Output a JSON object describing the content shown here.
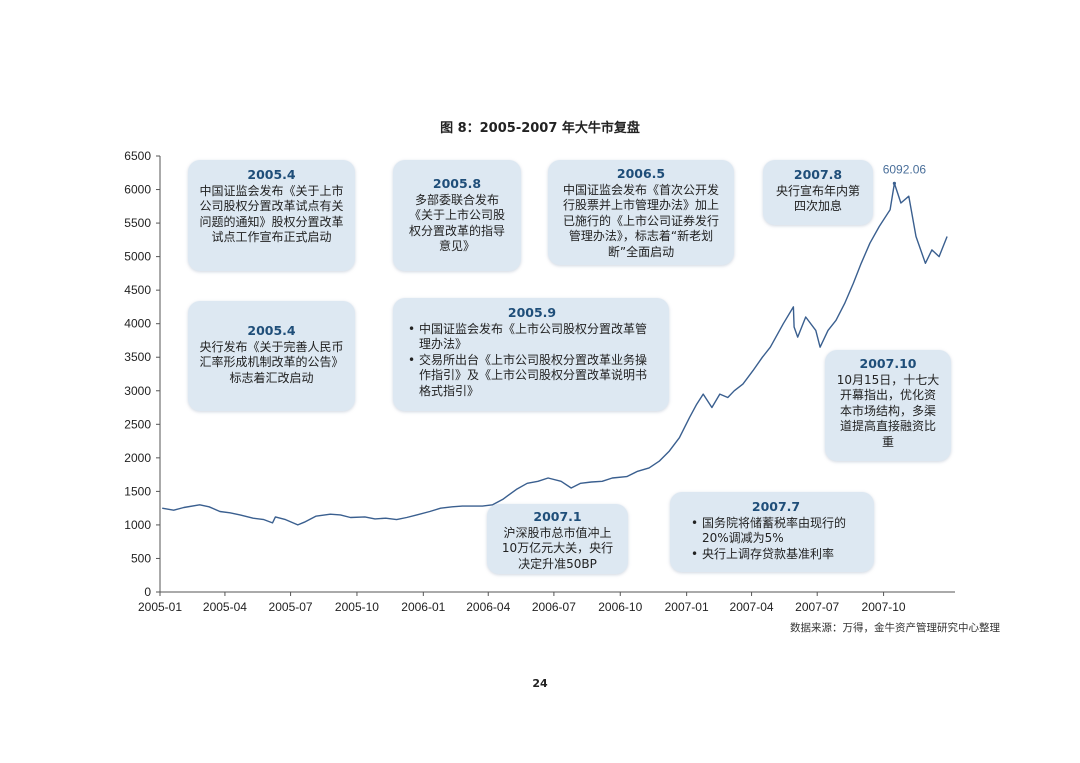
{
  "page": {
    "title": "图 8：2005-2007 年大牛市复盘",
    "source": "数据来源：万得，金牛资产管理研究中心整理",
    "page_number": "24"
  },
  "chart_data": {
    "type": "line",
    "title": "图 8：2005-2007 年大牛市复盘",
    "xlabel": "",
    "ylabel": "",
    "ylim": [
      0,
      6500
    ],
    "yticks": [
      "0",
      "500",
      "1000",
      "1500",
      "2000",
      "2500",
      "3000",
      "3500",
      "4000",
      "4500",
      "5000",
      "5500",
      "6000",
      "6500"
    ],
    "xticks": [
      "2005-01",
      "2005-04",
      "2005-07",
      "2005-10",
      "2006-01",
      "2006-04",
      "2006-07",
      "2006-10",
      "2007-01",
      "2007-04",
      "2007-07",
      "2007-10"
    ],
    "grid": false,
    "line_color": "#3a5f8f",
    "peak_label": "6092.06",
    "series": [
      {
        "x": [
          "2005-01-04",
          "2005-01-20",
          "2005-02-03",
          "2005-02-25",
          "2005-03-10",
          "2005-03-25",
          "2005-04-08",
          "2005-04-22",
          "2005-05-10",
          "2005-05-25",
          "2005-06-06",
          "2005-06-10",
          "2005-06-24",
          "2005-07-11",
          "2005-07-20",
          "2005-08-05",
          "2005-08-25",
          "2005-09-08",
          "2005-09-22",
          "2005-10-12",
          "2005-10-26",
          "2005-11-10",
          "2005-11-25",
          "2005-12-09",
          "2005-12-23",
          "2006-01-10",
          "2006-01-25",
          "2006-02-10",
          "2006-02-24",
          "2006-03-10",
          "2006-03-24",
          "2006-04-07",
          "2006-04-21",
          "2006-05-10",
          "2006-05-25",
          "2006-06-09",
          "2006-06-23",
          "2006-07-11",
          "2006-07-25",
          "2006-08-07",
          "2006-08-22",
          "2006-09-06",
          "2006-09-20",
          "2006-10-10",
          "2006-10-25",
          "2006-11-10",
          "2006-11-24",
          "2006-12-08",
          "2006-12-22",
          "2007-01-05",
          "2007-01-15",
          "2007-01-24",
          "2007-02-05",
          "2007-02-16",
          "2007-02-27",
          "2007-03-08",
          "2007-03-20",
          "2007-04-03",
          "2007-04-16",
          "2007-04-27",
          "2007-05-15",
          "2007-05-29",
          "2007-05-30",
          "2007-06-04",
          "2007-06-15",
          "2007-06-29",
          "2007-07-05",
          "2007-07-16",
          "2007-07-27",
          "2007-08-08",
          "2007-08-20",
          "2007-08-31",
          "2007-09-12",
          "2007-09-25",
          "2007-10-10",
          "2007-10-16",
          "2007-10-25",
          "2007-11-05",
          "2007-11-15",
          "2007-11-28",
          "2007-12-07",
          "2007-12-17",
          "2007-12-28"
        ],
        "values": [
          1250,
          1220,
          1260,
          1300,
          1270,
          1200,
          1180,
          1150,
          1100,
          1080,
          1030,
          1120,
          1080,
          1000,
          1040,
          1130,
          1160,
          1150,
          1110,
          1120,
          1090,
          1100,
          1080,
          1110,
          1150,
          1200,
          1250,
          1270,
          1280,
          1280,
          1280,
          1300,
          1380,
          1530,
          1620,
          1650,
          1700,
          1650,
          1550,
          1620,
          1640,
          1650,
          1700,
          1720,
          1800,
          1850,
          1950,
          2100,
          2300,
          2600,
          2800,
          2950,
          2750,
          2950,
          2900,
          3000,
          3100,
          3300,
          3500,
          3650,
          4000,
          4250,
          3950,
          3800,
          4100,
          3900,
          3650,
          3900,
          4050,
          4300,
          4600,
          4900,
          5200,
          5450,
          5700,
          6092,
          5800,
          5900,
          5300,
          4900,
          5100,
          5000,
          5300
        ]
      }
    ]
  },
  "annotations": {
    "a1": {
      "date": "2005.4",
      "text": "中国证监会发布《关于上市公司股权分置改革试点有关问题的通知》股权分置改革试点工作宣布正式启动"
    },
    "a2": {
      "date": "2005.8",
      "text": "多部委联合发布《关于上市公司股权分置改革的指导意见》"
    },
    "a3": {
      "date": "2006.5",
      "text": "中国证监会发布《首次公开发行股票并上市管理办法》加上已施行的《上市公司证券发行管理办法》，标志着“新老划断”全面启动"
    },
    "a4": {
      "date": "2007.8",
      "text": "央行宣布年内第四次加息"
    },
    "a5": {
      "date": "2005.4",
      "text": "央行发布《关于完善人民币汇率形成机制改革的公告》标志着汇改启动"
    },
    "a6": {
      "date": "2005.9",
      "items": [
        "中国证监会发布《上市公司股权分置改革管理办法》",
        "交易所出台《上市公司股权分置改革业务操作指引》及《上市公司股权分置改革说明书格式指引》"
      ]
    },
    "a7": {
      "date": "2007.10",
      "text": "10月15日，十七大开幕指出，优化资本市场结构，多渠道提高直接融资比重"
    },
    "a8": {
      "date": "2007.1",
      "text": "沪深股市总市值冲上10万亿元大关，央行决定升准50BP"
    },
    "a9": {
      "date": "2007.7",
      "items": [
        "国务院将储蓄税率由现行的20%调减为5%",
        "央行上调存贷款基准利率"
      ]
    }
  }
}
